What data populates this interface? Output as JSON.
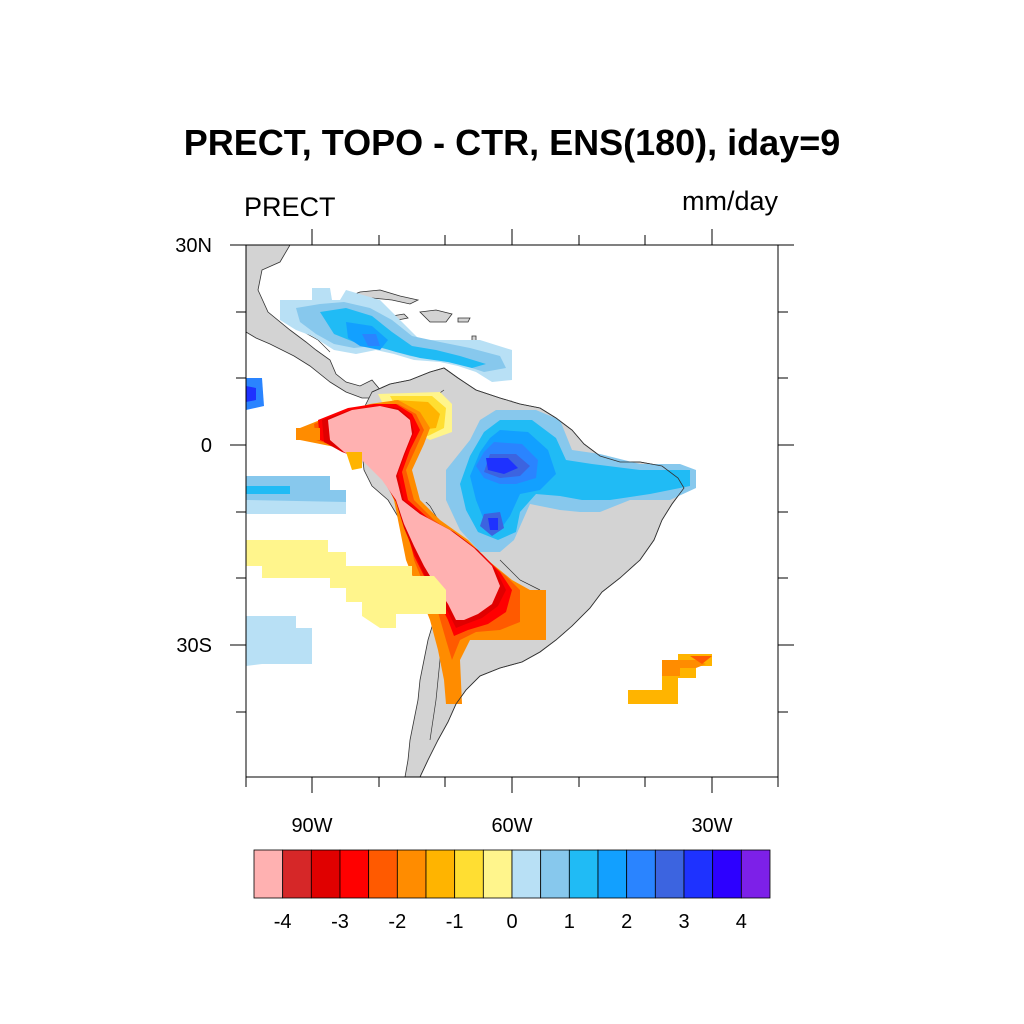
{
  "title": "PRECT, TOPO - CTR, ENS(180), iday=9",
  "left_label": "PRECT",
  "right_label": "mm/day",
  "map": {
    "lat_range": [
      -50,
      30
    ],
    "lon_range": [
      -100,
      -20
    ],
    "y_ticks": [
      "30N",
      "0",
      "30S"
    ],
    "x_ticks": [
      "90W",
      "60W",
      "30W"
    ],
    "land_color": "#d3d3d3",
    "field": "difference of precipitation (TOPO - CTR)"
  },
  "colorbar": {
    "colors": [
      "#ffb1b1",
      "#d62728",
      "#e00000",
      "#ff0000",
      "#ff5a00",
      "#ff8c00",
      "#ffb400",
      "#ffde32",
      "#fff58c",
      "#b8e0f5",
      "#87c8ed",
      "#20bbf5",
      "#12a0ff",
      "#2a84ff",
      "#3c64e0",
      "#1e32ff",
      "#2d00ff",
      "#7d20e8"
    ],
    "labels": [
      "-4",
      "-3",
      "-2",
      "-1",
      "0",
      "1",
      "2",
      "3",
      "4"
    ]
  }
}
